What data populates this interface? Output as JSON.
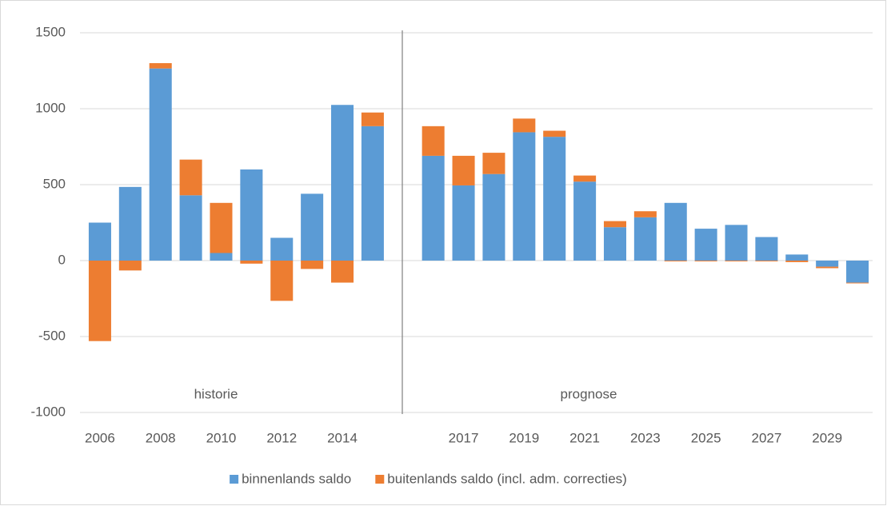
{
  "chart_data": {
    "type": "stacked_bar",
    "categories": [
      "2006",
      null,
      "2008",
      null,
      "2010",
      null,
      "2012",
      null,
      "2014",
      null,
      null,
      null,
      "2017",
      null,
      "2019",
      null,
      "2021",
      null,
      "2023",
      null,
      "2025",
      null,
      "2027",
      null,
      "2029",
      null
    ],
    "series": [
      {
        "name": "binnenlands saldo",
        "color": "#5b9bd5",
        "values": [
          250,
          485,
          1265,
          430,
          50,
          600,
          150,
          440,
          1025,
          885,
          null,
          690,
          495,
          570,
          845,
          815,
          520,
          220,
          285,
          380,
          210,
          235,
          155,
          40,
          -40,
          -145
        ]
      },
      {
        "name": "buitenlands saldo (incl. adm. correcties)",
        "color": "#ed7d31",
        "values": [
          -530,
          -65,
          35,
          235,
          330,
          -20,
          -265,
          -55,
          -145,
          90,
          null,
          195,
          195,
          140,
          90,
          40,
          40,
          40,
          40,
          -5,
          -5,
          -5,
          -5,
          -10,
          -10,
          -5
        ]
      }
    ],
    "annotations": [
      "historie",
      "prognose"
    ],
    "ylim": [
      -1000,
      1500
    ],
    "yticks": [
      -1000,
      -500,
      0,
      500,
      1000,
      1500
    ],
    "grid": true,
    "legend": "bottom"
  }
}
